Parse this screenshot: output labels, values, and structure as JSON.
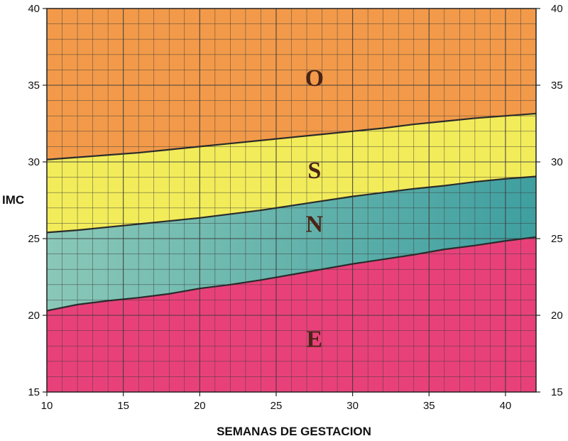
{
  "chart_data": {
    "type": "area",
    "xlabel": "SEMANAS DE GESTACION",
    "ylabel": "IMC",
    "xlim": [
      10,
      42
    ],
    "ylim": [
      15,
      40
    ],
    "x_ticks": [
      "10",
      "15",
      "20",
      "25",
      "30",
      "35",
      "40"
    ],
    "y_ticks": [
      "15",
      "20",
      "25",
      "30",
      "35",
      "40"
    ],
    "grid": true,
    "x": [
      10,
      12,
      14,
      16,
      18,
      20,
      22,
      24,
      26,
      28,
      30,
      32,
      34,
      36,
      38,
      40,
      42
    ],
    "boundaries": [
      {
        "between": [
          "E",
          "N"
        ],
        "values": [
          20.3,
          20.7,
          20.95,
          21.15,
          21.4,
          21.75,
          22.0,
          22.3,
          22.65,
          23.0,
          23.35,
          23.65,
          23.95,
          24.3,
          24.55,
          24.85,
          25.1
        ]
      },
      {
        "between": [
          "N",
          "S"
        ],
        "values": [
          25.4,
          25.55,
          25.75,
          25.95,
          26.15,
          26.35,
          26.6,
          26.85,
          27.15,
          27.45,
          27.75,
          28.0,
          28.25,
          28.45,
          28.7,
          28.9,
          29.05
        ]
      },
      {
        "between": [
          "S",
          "O"
        ],
        "values": [
          30.15,
          30.3,
          30.45,
          30.6,
          30.8,
          31.0,
          31.2,
          31.4,
          31.6,
          31.8,
          32.0,
          32.2,
          32.45,
          32.65,
          32.85,
          33.0,
          33.15
        ]
      }
    ],
    "zones": [
      {
        "label": "E",
        "color": "#e8417a",
        "label_x": 27.5,
        "label_y": 18.5
      },
      {
        "label": "N",
        "color": "#4ea8a2",
        "label_x": 27.5,
        "label_y": 26.0
      },
      {
        "label": "S",
        "color": "#f2ec5a",
        "label_x": 27.5,
        "label_y": 29.5
      },
      {
        "label": "O",
        "color": "#f29a4a",
        "label_x": 27.5,
        "label_y": 35.5
      }
    ],
    "colors": {
      "grid": "#3a3a3a",
      "boundary": "#2b2b2b",
      "frame": "#222222",
      "n_zone_light": "#8ac8b8"
    }
  }
}
